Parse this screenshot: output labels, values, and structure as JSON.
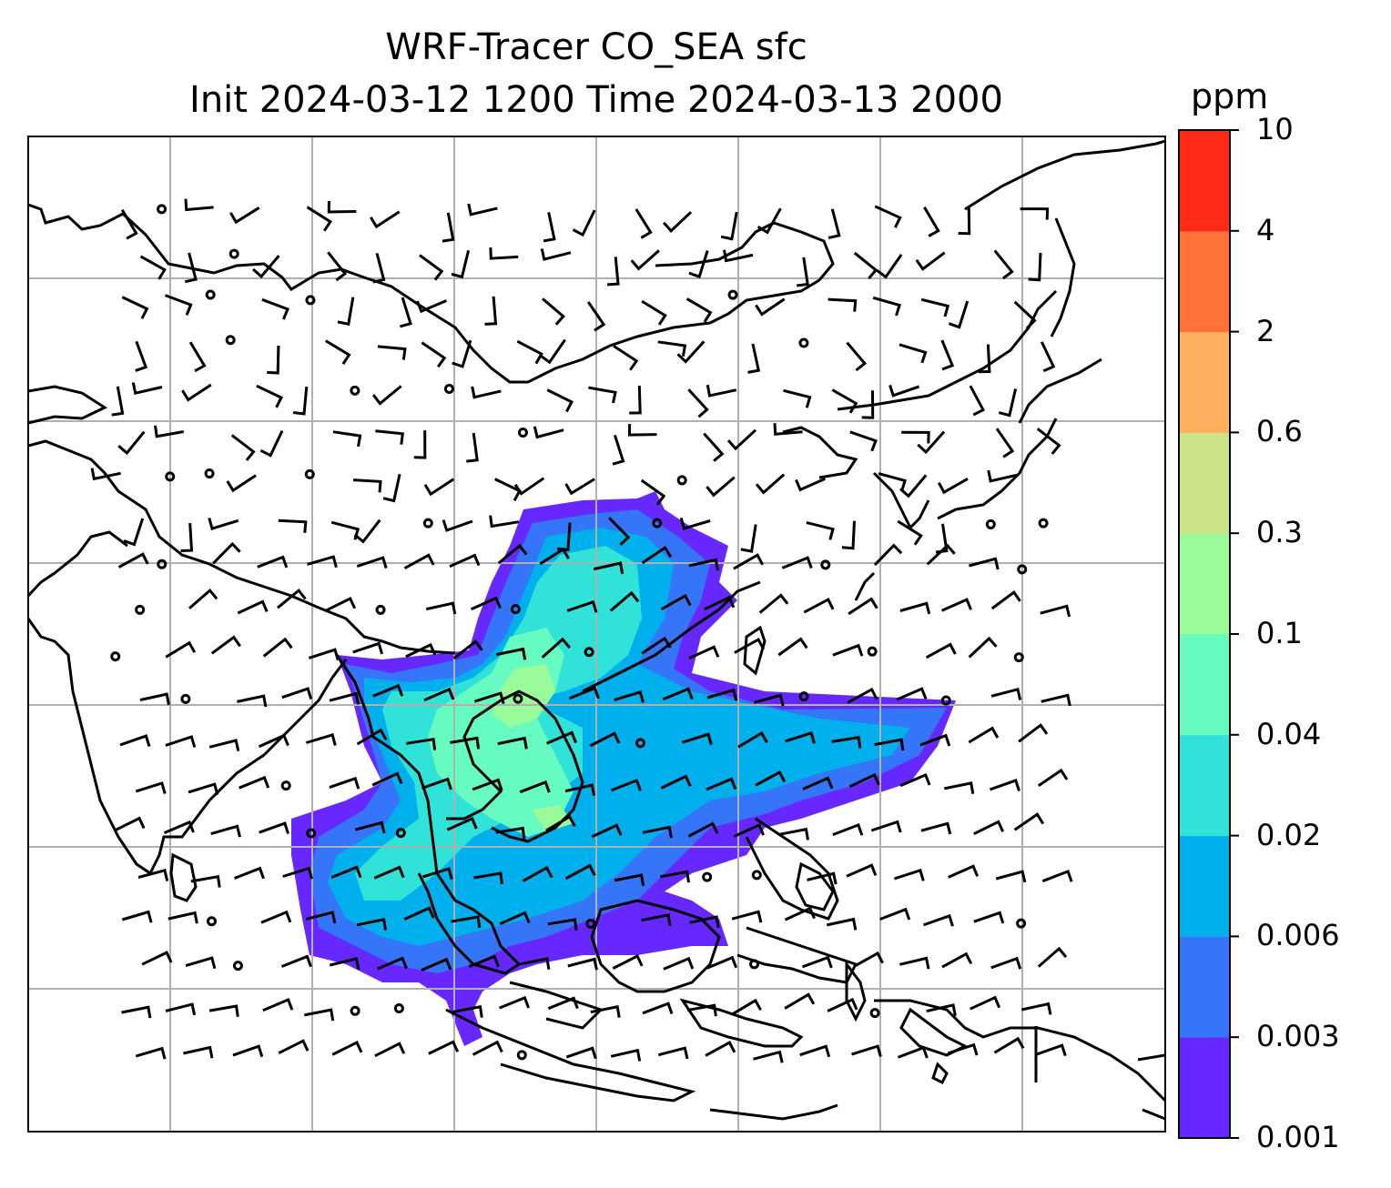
{
  "title_line1": "WRF-Tracer CO_SEA sfc",
  "title_line2": "Init 2024-03-12 1200 Time 2024-03-13 2000",
  "colorbar": {
    "unit": "ppm",
    "levels": [
      "0.001",
      "0.003",
      "0.006",
      "0.02",
      "0.04",
      "0.1",
      "0.3",
      "0.6",
      "2",
      "4",
      "10"
    ],
    "colors": [
      "#6628fe",
      "#3476f7",
      "#00b0ec",
      "#30e2d8",
      "#66fbc0",
      "#99fb9a",
      "#cce286",
      "#ffb05e",
      "#ff7237",
      "#ff2b18"
    ]
  },
  "map": {
    "coastline_color": "#000000",
    "grid_color": "#b0b0b0",
    "plume_colors": {
      "outer": "#6628fe",
      "band2": "#3476f7",
      "band3": "#00b0ec",
      "band4": "#30e2d8",
      "band5": "#66fbc0",
      "core": "#99fb9a"
    }
  }
}
